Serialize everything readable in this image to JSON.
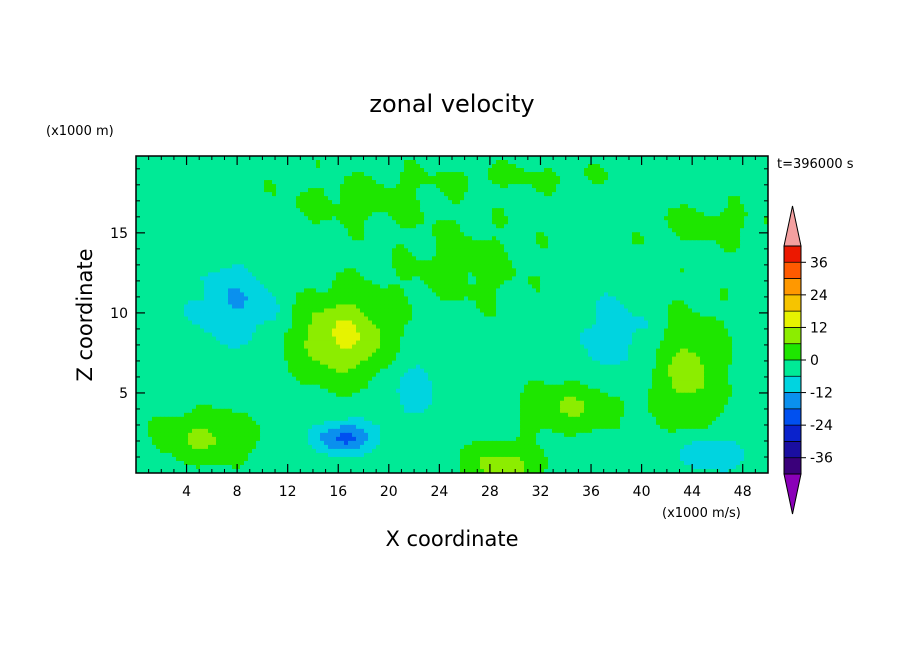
{
  "chart_data": {
    "type": "heatmap",
    "title": "zonal velocity",
    "xlabel": "X coordinate",
    "ylabel": "Z coordinate",
    "x_unit": "(x1000 m/s)",
    "y_unit": "(x1000 m)",
    "time_label": "t=396000 s",
    "xlim": [
      0,
      50
    ],
    "ylim": [
      0,
      19.8
    ],
    "x_ticks": [
      4,
      8,
      12,
      16,
      20,
      24,
      28,
      32,
      36,
      40,
      44,
      48
    ],
    "y_ticks": [
      5,
      10,
      15
    ],
    "colorbar": {
      "levels": [
        -42,
        -36,
        -30,
        -24,
        -18,
        -12,
        -6,
        0,
        6,
        12,
        18,
        24,
        30,
        36,
        42
      ],
      "tick_labels": [
        "36",
        "24",
        "12",
        "0",
        "-12",
        "-24",
        "-36"
      ],
      "tick_values": [
        36,
        24,
        12,
        0,
        -12,
        -24,
        -36
      ],
      "colors": [
        "#3a007a",
        "#1a0ea0",
        "#0a22cc",
        "#0050f0",
        "#0a90ee",
        "#00d4e0",
        "#00ea96",
        "#1ee600",
        "#8ced00",
        "#e6f300",
        "#f6c400",
        "#ff9800",
        "#ff5a00",
        "#ec1800"
      ],
      "under_color": "#8a00b8",
      "over_color": "#f4a0a0"
    },
    "background_value": -2,
    "features": [
      {
        "x": 16.5,
        "z": 8.5,
        "sx": 4.0,
        "sz": 2.6,
        "amp": 15
      },
      {
        "x": 16.5,
        "z": 2.2,
        "sx": 2.3,
        "sz": 1.0,
        "amp": -18
      },
      {
        "x": 5.5,
        "z": 2.2,
        "sx": 3.5,
        "sz": 1.5,
        "amp": 9
      },
      {
        "x": 43.5,
        "z": 6.5,
        "sx": 2.8,
        "sz": 3.5,
        "amp": 11
      },
      {
        "x": 34.5,
        "z": 4.2,
        "sx": 3.5,
        "sz": 1.5,
        "amp": 9
      },
      {
        "x": 29.0,
        "z": 0.5,
        "sx": 3.0,
        "sz": 1.2,
        "amp": 11
      },
      {
        "x": 8.0,
        "z": 10.5,
        "sx": 3.5,
        "sz": 2.6,
        "amp": -10
      },
      {
        "x": 22.0,
        "z": 5.5,
        "sx": 2.8,
        "sz": 3.0,
        "amp": -6
      },
      {
        "x": 38.0,
        "z": 8.5,
        "sx": 4.5,
        "sz": 3.0,
        "amp": -6
      },
      {
        "x": 45.5,
        "z": 1.2,
        "sx": 3.0,
        "sz": 1.2,
        "amp": -9
      },
      {
        "x": 26.0,
        "z": 13.0,
        "sx": 5.0,
        "sz": 2.5,
        "amp": 4
      },
      {
        "x": 18.0,
        "z": 17.0,
        "sx": 6.0,
        "sz": 1.5,
        "amp": 4
      },
      {
        "x": 45.0,
        "z": 15.5,
        "sx": 5.0,
        "sz": 1.2,
        "amp": 4
      },
      {
        "x": 30.0,
        "z": 18.5,
        "sx": 8.0,
        "sz": 0.8,
        "amp": 3
      }
    ]
  }
}
